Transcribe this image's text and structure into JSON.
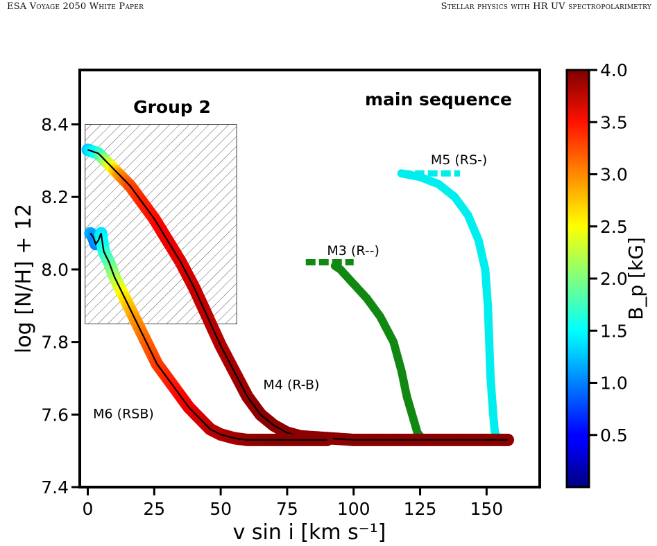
{
  "header": {
    "left": "ESA Voyage 2050 White Paper",
    "right": "Stellar physics with HR UV spectropolarimetry"
  },
  "chart_data": {
    "type": "scatter",
    "xlabel": "v sin i [km s⁻¹]",
    "ylabel": "log [N/H] + 12",
    "xlim": [
      -3,
      170
    ],
    "ylim": [
      7.4,
      8.55
    ],
    "xticks": [
      0,
      25,
      50,
      75,
      100,
      125,
      150
    ],
    "yticks": [
      7.4,
      7.6,
      7.8,
      8.0,
      8.2,
      8.4
    ],
    "grid": false,
    "annotations": {
      "regime": "main sequence",
      "group": "Group 2"
    },
    "hatched_region": {
      "x": [
        -1,
        56
      ],
      "y": [
        7.85,
        8.4
      ]
    },
    "colorbar": {
      "label": "B_p [kG]",
      "min": 0.0,
      "max": 4.0,
      "ticks": [
        0.5,
        1.0,
        1.5,
        2.0,
        2.5,
        3.0,
        3.5,
        4.0
      ],
      "colormap": "jet"
    },
    "series": [
      {
        "name": "M5 (RS-)",
        "color": "#00eeee",
        "label_at": [
          129,
          8.29
        ],
        "x": [
          118,
          125,
          132,
          138,
          143,
          147,
          149.5,
          150.5,
          151,
          151.5,
          152,
          152.5,
          153,
          153.5,
          157
        ],
        "y": [
          8.265,
          8.255,
          8.235,
          8.2,
          8.15,
          8.08,
          8.0,
          7.9,
          7.8,
          7.7,
          7.65,
          7.6,
          7.56,
          7.54,
          7.53
        ],
        "flat": {
          "x": [
            118,
            140
          ],
          "y": 8.265
        }
      },
      {
        "name": "M3 (R--)",
        "color": "#118811",
        "label_at": [
          90,
          8.04
        ],
        "x": [
          93,
          95,
          100,
          105,
          110,
          115,
          118,
          120,
          122,
          124,
          125,
          127,
          140,
          152
        ],
        "y": [
          8.01,
          8.0,
          7.96,
          7.92,
          7.87,
          7.8,
          7.72,
          7.65,
          7.6,
          7.55,
          7.54,
          7.53,
          7.53,
          7.53
        ],
        "flat": {
          "x": [
            82,
            100
          ],
          "y": 8.02
        }
      },
      {
        "name": "M4 (R-B)",
        "color": "jet",
        "label_at": [
          66,
          7.67
        ],
        "x": [
          0,
          4,
          8,
          12,
          16,
          20,
          25,
          30,
          35,
          40,
          45,
          50,
          55,
          60,
          65,
          70,
          75,
          80,
          90,
          100,
          120,
          140,
          158
        ],
        "y": [
          8.33,
          8.32,
          8.29,
          8.26,
          8.23,
          8.19,
          8.14,
          8.08,
          8.02,
          7.95,
          7.87,
          7.79,
          7.72,
          7.65,
          7.6,
          7.57,
          7.55,
          7.54,
          7.535,
          7.53,
          7.53,
          7.53,
          7.53
        ],
        "bp": [
          1.3,
          1.6,
          2.3,
          2.9,
          3.2,
          3.35,
          3.45,
          3.55,
          3.6,
          3.7,
          3.75,
          3.8,
          3.85,
          3.9,
          3.95,
          3.95,
          3.95,
          3.95,
          3.95,
          3.95,
          3.95,
          3.95,
          3.95
        ]
      },
      {
        "name": "M6 (RSB)",
        "color": "jet",
        "label_at": [
          2,
          7.59
        ],
        "x": [
          1,
          2,
          3,
          4,
          5,
          6,
          8,
          10,
          14,
          18,
          22,
          26,
          30,
          34,
          38,
          42,
          46,
          50,
          55,
          60,
          70,
          80,
          90
        ],
        "y": [
          8.1,
          8.09,
          8.07,
          8.08,
          8.1,
          8.05,
          8.02,
          7.98,
          7.92,
          7.86,
          7.8,
          7.74,
          7.7,
          7.66,
          7.62,
          7.59,
          7.56,
          7.545,
          7.535,
          7.53,
          7.53,
          7.53,
          7.53
        ],
        "bp": [
          1.2,
          1.1,
          1.0,
          1.1,
          1.4,
          1.6,
          1.8,
          2.1,
          2.6,
          2.9,
          3.1,
          3.25,
          3.35,
          3.45,
          3.55,
          3.65,
          3.75,
          3.8,
          3.85,
          3.9,
          3.95,
          3.95,
          3.95
        ]
      }
    ]
  }
}
